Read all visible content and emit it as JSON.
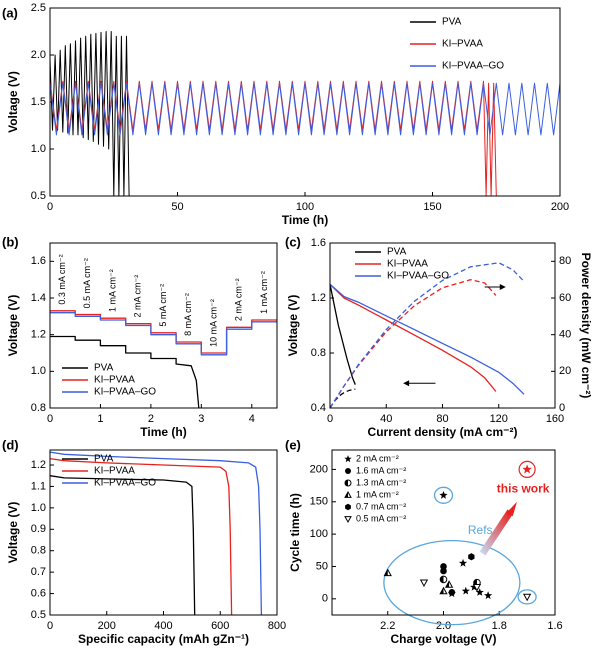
{
  "chart_data": [
    {
      "type": "line",
      "panel": "(a)",
      "xlabel": "Time (h)",
      "ylabel": "Voltage (V)",
      "xlim": [
        0,
        200
      ],
      "xticks": [
        0,
        50,
        100,
        150,
        200
      ],
      "ylim": [
        0.5,
        2.5
      ],
      "yticks": [
        0.5,
        {
          "value": 1,
          "label": "1.0"
        },
        1.5,
        {
          "value": 2,
          "label": "2.0"
        },
        2.5
      ],
      "legend": "upper right",
      "series": [
        {
          "name": "PVA",
          "color": "#000000",
          "x": [
            0,
            1,
            2,
            3,
            4,
            5,
            6,
            7,
            8,
            9,
            10,
            11,
            12,
            13,
            14,
            15,
            16,
            17,
            18,
            19,
            20,
            21,
            22,
            23,
            24,
            25,
            26,
            27,
            28,
            29,
            30,
            31
          ],
          "values": [
            1.95,
            1.2,
            2.0,
            1.2,
            2.05,
            1.18,
            2.1,
            1.17,
            2.12,
            1.15,
            2.15,
            1.15,
            2.18,
            1.12,
            2.2,
            1.1,
            2.22,
            1.08,
            2.23,
            1.05,
            2.24,
            1.03,
            2.25,
            1.0,
            2.25,
            0.5,
            2.2,
            0.5,
            2.2,
            0.5,
            2.2,
            0.5
          ]
        },
        {
          "name": "KI–PVAA",
          "color": "#e8211f",
          "x": [
            0,
            2.5,
            5,
            7.5,
            10,
            12.5,
            15,
            17.5,
            20,
            22.5,
            25,
            27.5,
            30,
            32.5,
            35,
            37.5,
            40,
            42.5,
            45,
            47.5,
            50,
            52.5,
            55,
            57.5,
            60,
            62.5,
            65,
            67.5,
            70,
            72.5,
            75,
            77.5,
            80,
            82.5,
            85,
            87.5,
            90,
            92.5,
            95,
            97.5,
            100,
            102.5,
            105,
            107.5,
            110,
            112.5,
            115,
            117.5,
            120,
            122.5,
            125,
            127.5,
            130,
            132.5,
            135,
            137.5,
            140,
            142.5,
            145,
            147.5,
            150,
            152.5,
            155,
            157.5,
            160,
            162.5,
            165,
            167.5,
            170,
            171,
            172,
            173,
            174,
            175
          ],
          "values": [
            1.72,
            1.2,
            1.72,
            1.2,
            1.72,
            1.2,
            1.72,
            1.2,
            1.72,
            1.2,
            1.72,
            1.2,
            1.72,
            1.2,
            1.72,
            1.2,
            1.72,
            1.2,
            1.72,
            1.2,
            1.72,
            1.2,
            1.72,
            1.2,
            1.72,
            1.2,
            1.72,
            1.2,
            1.72,
            1.2,
            1.72,
            1.2,
            1.72,
            1.2,
            1.72,
            1.2,
            1.72,
            1.2,
            1.72,
            1.2,
            1.72,
            1.2,
            1.72,
            1.2,
            1.72,
            1.2,
            1.72,
            1.2,
            1.72,
            1.2,
            1.72,
            1.2,
            1.72,
            1.2,
            1.72,
            1.2,
            1.72,
            1.2,
            1.72,
            1.2,
            1.72,
            1.2,
            1.72,
            1.2,
            1.72,
            1.2,
            1.72,
            1.2,
            1.72,
            0.5,
            1.7,
            0.5,
            1.7,
            0.5
          ]
        },
        {
          "name": "KI–PVAA–GO",
          "color": "#3b5fe0",
          "x": [
            0,
            2.5,
            5,
            7.5,
            10,
            12.5,
            15,
            17.5,
            20,
            22.5,
            25,
            27.5,
            30,
            32.5,
            35,
            37.5,
            40,
            42.5,
            45,
            47.5,
            50,
            52.5,
            55,
            57.5,
            60,
            62.5,
            65,
            67.5,
            70,
            72.5,
            75,
            77.5,
            80,
            82.5,
            85,
            87.5,
            90,
            92.5,
            95,
            97.5,
            100,
            102.5,
            105,
            107.5,
            110,
            112.5,
            115,
            117.5,
            120,
            122.5,
            125,
            127.5,
            130,
            132.5,
            135,
            137.5,
            140,
            142.5,
            145,
            147.5,
            150,
            152.5,
            155,
            157.5,
            160,
            162.5,
            165,
            167.5,
            170,
            172.5,
            175,
            177.5,
            180,
            182.5,
            185,
            187.5,
            190,
            192.5,
            195,
            197.5,
            200
          ],
          "values": [
            1.7,
            1.15,
            1.7,
            1.15,
            1.7,
            1.15,
            1.7,
            1.15,
            1.7,
            1.15,
            1.7,
            1.15,
            1.7,
            1.15,
            1.7,
            1.15,
            1.7,
            1.15,
            1.7,
            1.15,
            1.7,
            1.15,
            1.7,
            1.15,
            1.7,
            1.15,
            1.7,
            1.15,
            1.7,
            1.15,
            1.7,
            1.15,
            1.7,
            1.15,
            1.7,
            1.15,
            1.7,
            1.15,
            1.7,
            1.15,
            1.7,
            1.15,
            1.7,
            1.15,
            1.7,
            1.15,
            1.7,
            1.15,
            1.7,
            1.15,
            1.7,
            1.15,
            1.7,
            1.15,
            1.7,
            1.15,
            1.7,
            1.15,
            1.7,
            1.15,
            1.7,
            1.15,
            1.7,
            1.15,
            1.7,
            1.15,
            1.7,
            1.15,
            1.7,
            1.15,
            1.7,
            1.15,
            1.7,
            1.15,
            1.7,
            1.15,
            1.7,
            1.15,
            1.7,
            1.15,
            1.7
          ]
        }
      ]
    },
    {
      "type": "line",
      "panel": "(b)",
      "xlabel": "Time (h)",
      "ylabel": "Voltage (V)",
      "xlim": [
        0,
        4.5
      ],
      "xticks": [
        0,
        1,
        2,
        3,
        4
      ],
      "ylim": [
        0.8,
        1.7
      ],
      "yticks": [
        0.8,
        {
          "value": 1,
          "label": "1.0"
        },
        1.2,
        1.4,
        1.6
      ],
      "legend": "lower left",
      "annotations": [
        "0.3 mA cm⁻²",
        "0.5 mA cm⁻²",
        "1 mA cm⁻²",
        "2 mA cm⁻²",
        "5 mA cm⁻²",
        "8 mA cm⁻²",
        "10 mA cm⁻²",
        "2 mA cm⁻²",
        "1 mA cm⁻²"
      ],
      "series": [
        {
          "name": "PVA",
          "color": "#000000",
          "x": [
            0,
            0.5,
            0.5,
            1,
            1,
            1.5,
            1.5,
            2,
            2,
            2.5,
            2.5,
            2.8,
            2.9,
            2.95
          ],
          "values": [
            1.19,
            1.19,
            1.17,
            1.17,
            1.14,
            1.14,
            1.1,
            1.1,
            1.07,
            1.07,
            1.04,
            1.03,
            0.95,
            0.8
          ]
        },
        {
          "name": "KI–PVAA",
          "color": "#e8211f",
          "x": [
            0,
            0.5,
            0.5,
            1,
            1,
            1.5,
            1.5,
            2,
            2,
            2.5,
            2.5,
            3,
            3,
            3.5,
            3.5,
            4,
            4,
            4.5
          ],
          "values": [
            1.33,
            1.33,
            1.31,
            1.31,
            1.29,
            1.29,
            1.26,
            1.26,
            1.21,
            1.21,
            1.16,
            1.16,
            1.1,
            1.1,
            1.24,
            1.24,
            1.28,
            1.28
          ]
        },
        {
          "name": "KI–PVAA–GO",
          "color": "#3b5fe0",
          "x": [
            0,
            0.5,
            0.5,
            1,
            1,
            1.5,
            1.5,
            2,
            2,
            2.5,
            2.5,
            3,
            3,
            3.5,
            3.5,
            4,
            4,
            4.5
          ],
          "values": [
            1.32,
            1.32,
            1.3,
            1.3,
            1.28,
            1.28,
            1.25,
            1.25,
            1.2,
            1.2,
            1.15,
            1.15,
            1.09,
            1.09,
            1.23,
            1.23,
            1.27,
            1.27
          ]
        }
      ]
    },
    {
      "type": "line",
      "panel": "(c)",
      "xlabel": "Current density (mA cm⁻²)",
      "ylabel": "Voltage (V)",
      "y2label": "Power density (mW cm⁻²)",
      "xlim": [
        0,
        160
      ],
      "xticks": [
        0,
        40,
        80,
        120,
        160
      ],
      "ylim": [
        0.4,
        1.6
      ],
      "yticks": [
        0.4,
        0.8,
        1.2,
        1.6
      ],
      "y2lim": [
        0,
        90
      ],
      "y2ticks": [
        0,
        20,
        40,
        60,
        80
      ],
      "legend": "upper left",
      "series": [
        {
          "name": "PVA",
          "color": "#000000",
          "x": [
            0,
            2,
            4,
            6,
            8,
            10,
            12,
            14,
            16,
            18
          ],
          "values": [
            1.3,
            1.2,
            1.1,
            1.0,
            0.92,
            0.84,
            0.76,
            0.69,
            0.62,
            0.57
          ],
          "power": [
            0,
            2.4,
            4.4,
            6,
            7.4,
            8.4,
            9.1,
            9.7,
            9.9,
            10.3
          ]
        },
        {
          "name": "KI–PVAA",
          "color": "#e8211f",
          "x": [
            0,
            10,
            20,
            40,
            60,
            80,
            100,
            110,
            118
          ],
          "values": [
            1.3,
            1.2,
            1.15,
            1.04,
            0.93,
            0.82,
            0.7,
            0.62,
            0.52
          ],
          "power": [
            0,
            12,
            23,
            41.6,
            55.8,
            65.6,
            70,
            68.2,
            61.4
          ]
        },
        {
          "name": "KI–PVAA–GO",
          "color": "#3b5fe0",
          "x": [
            0,
            10,
            20,
            40,
            60,
            80,
            100,
            120,
            130,
            138
          ],
          "values": [
            1.3,
            1.21,
            1.17,
            1.07,
            0.97,
            0.87,
            0.77,
            0.66,
            0.58,
            0.5
          ],
          "power": [
            0,
            12.1,
            23.4,
            42.8,
            58.2,
            69.6,
            77,
            79.2,
            75.4,
            69
          ]
        }
      ]
    },
    {
      "type": "line",
      "panel": "(d)",
      "xlabel": "Specific capacity (mAh gZn⁻¹)",
      "ylabel": "Voltage (V)",
      "xlim": [
        0,
        800
      ],
      "xticks": [
        0,
        200,
        400,
        600,
        800
      ],
      "ylim": [
        0.5,
        1.27
      ],
      "yticks": [
        0.5,
        0.6,
        0.7,
        0.8,
        0.9,
        {
          "value": 1,
          "label": "1.0"
        },
        1.1,
        1.2
      ],
      "legend": "upper left",
      "series": [
        {
          "name": "PVA",
          "color": "#000000",
          "x": [
            0,
            50,
            200,
            400,
            480,
            500,
            505,
            510
          ],
          "values": [
            1.15,
            1.14,
            1.135,
            1.13,
            1.12,
            1.1,
            0.9,
            0.5
          ]
        },
        {
          "name": "KI–PVAA",
          "color": "#e8211f",
          "x": [
            0,
            50,
            200,
            400,
            600,
            620,
            630,
            635,
            640
          ],
          "values": [
            1.23,
            1.22,
            1.21,
            1.2,
            1.19,
            1.17,
            1.1,
            0.9,
            0.5
          ]
        },
        {
          "name": "KI–PVAA–GO",
          "color": "#3b5fe0",
          "x": [
            0,
            50,
            200,
            400,
            600,
            700,
            725,
            735,
            740,
            745
          ],
          "values": [
            1.26,
            1.25,
            1.24,
            1.23,
            1.22,
            1.21,
            1.19,
            1.1,
            0.9,
            0.5
          ]
        }
      ]
    },
    {
      "type": "scatter",
      "panel": "(e)",
      "xlabel": "Charge voltage (V)",
      "ylabel": "Cycle time (h)",
      "xlim": [
        2.4,
        1.6
      ],
      "xticks": [
        2.2,
        {
          "value": 2,
          "label": "2.0"
        },
        1.8,
        1.6
      ],
      "ylim": [
        -25,
        230
      ],
      "yticks": [
        0,
        50,
        100,
        150,
        200
      ],
      "legend": "upper left",
      "annotations": [
        "Refs."
      ],
      "highlight": {
        "x": 1.7,
        "value": 200,
        "label": "this work",
        "color": "#e8211f"
      },
      "series": [
        {
          "name": "2 mA cm⁻²",
          "marker": "star",
          "color": "#000000",
          "x": [
            2.0,
            1.97,
            1.93,
            1.92,
            1.89,
            1.87,
            1.84
          ],
          "values": [
            160,
            8,
            55,
            12,
            18,
            10,
            5
          ]
        },
        {
          "name": "1.6 mA cm⁻²",
          "marker": "circle",
          "color": "#000000",
          "x": [
            2.0,
            2.0,
            1.97
          ],
          "values": [
            50,
            43,
            10
          ]
        },
        {
          "name": "1.3 mA cm⁻²",
          "marker": "half-circle",
          "color": "#000000",
          "x": [
            2.0,
            1.88
          ],
          "values": [
            30,
            25
          ]
        },
        {
          "name": "1 mA cm⁻²",
          "marker": "half-triangle",
          "color": "#000000",
          "x": [
            2.2,
            2.0,
            1.98
          ],
          "values": [
            40,
            12,
            22
          ]
        },
        {
          "name": "0.7 mA cm⁻²",
          "marker": "hexagon",
          "color": "#000000",
          "x": [
            1.9
          ],
          "values": [
            65
          ]
        },
        {
          "name": "0.5 mA cm⁻²",
          "marker": "down-triangle",
          "color": "#000000",
          "x": [
            2.07,
            1.88,
            1.7
          ],
          "values": [
            25,
            18,
            3
          ]
        }
      ]
    }
  ]
}
